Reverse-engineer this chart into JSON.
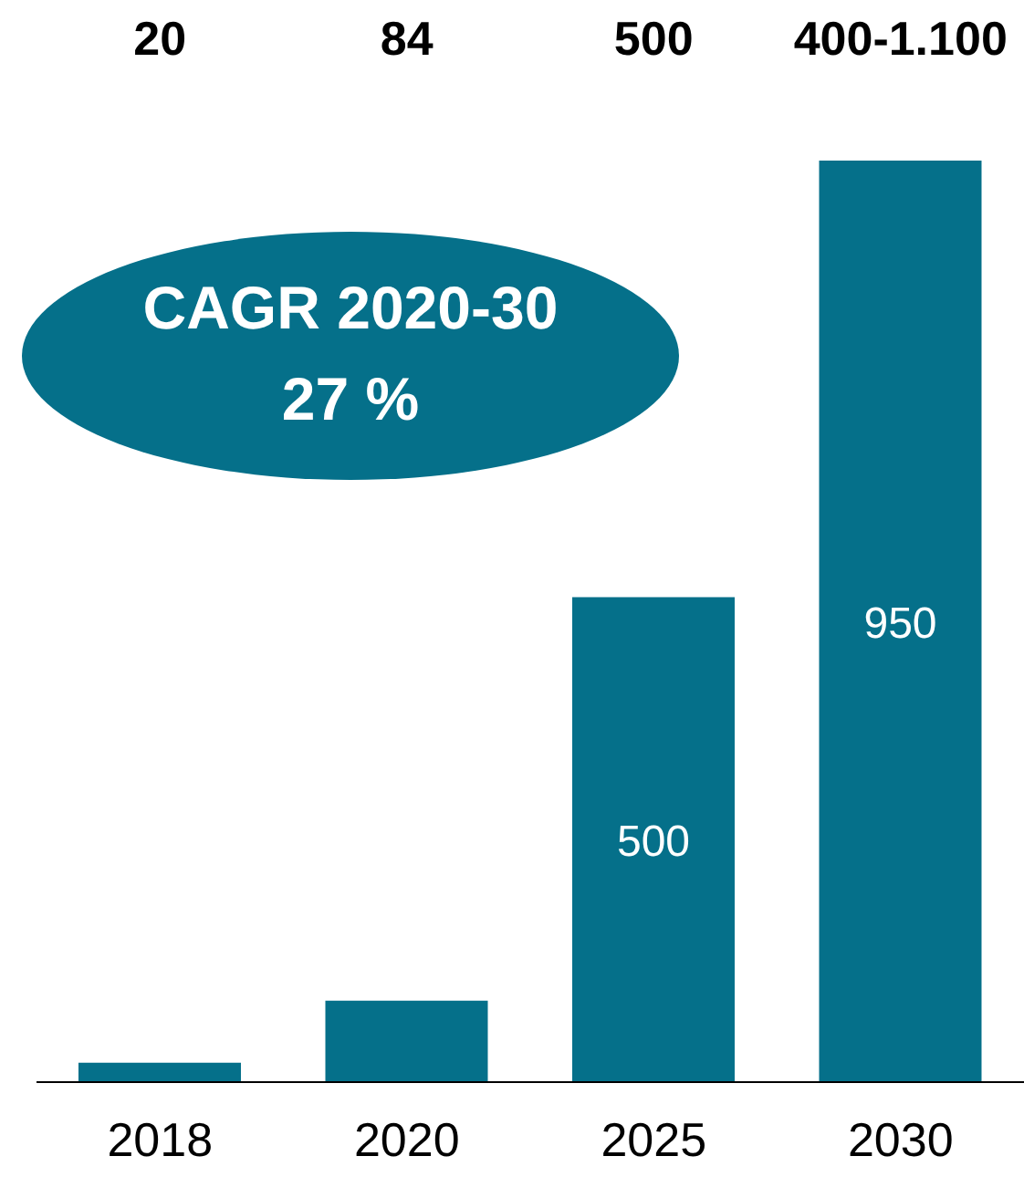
{
  "chart_data": {
    "type": "bar",
    "categories": [
      "2018",
      "2020",
      "2025",
      "2030"
    ],
    "values": [
      20,
      84,
      500,
      950
    ],
    "color": "#05708a",
    "value_labels": [
      null,
      null,
      "500",
      "950"
    ],
    "annotations": [
      "CAGR 2020-30",
      "27 %",
      "20",
      "84",
      "500",
      "400-1.100"
    ]
  }
}
